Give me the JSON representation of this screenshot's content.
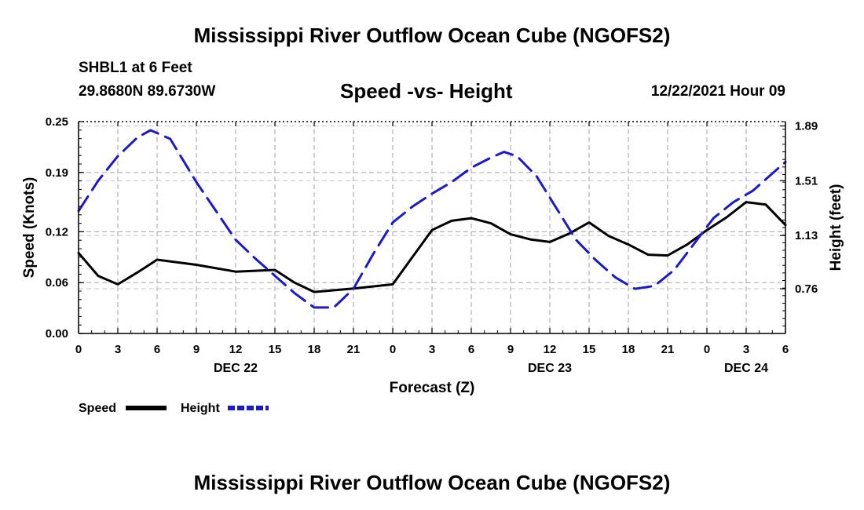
{
  "header": {
    "title": "Mississippi River Outflow Ocean Cube (NGOFS2)",
    "station": "SHBL1 at 6 Feet",
    "coords": "29.8680N  89.6730W",
    "subtitle": "Speed -vs- Height",
    "datetime": "12/22/2021 Hour 09"
  },
  "footer": {
    "title": "Mississippi River Outflow Ocean Cube (NGOFS2)"
  },
  "chart_data": {
    "type": "line",
    "title": "Speed -vs- Height",
    "xlabel": "Forecast (Z)",
    "ylabel": "Speed (Knots)",
    "y2label": "Height (feet)",
    "xlim": [
      0,
      54
    ],
    "ylim": [
      0,
      0.25
    ],
    "y2lim": [
      0.45,
      1.92
    ],
    "grid": true,
    "x_ticks": [
      0,
      3,
      6,
      9,
      12,
      15,
      18,
      21,
      24,
      27,
      30,
      33,
      36,
      39,
      42,
      45,
      48,
      51,
      54
    ],
    "x_tick_labels": [
      "0",
      "3",
      "6",
      "9",
      "12",
      "15",
      "18",
      "21",
      "0",
      "3",
      "6",
      "9",
      "12",
      "15",
      "18",
      "21",
      "0",
      "3",
      "6"
    ],
    "date_labels": [
      {
        "x": 12,
        "label": "DEC 22"
      },
      {
        "x": 36,
        "label": "DEC 23"
      },
      {
        "x": 51,
        "label": "DEC 24"
      }
    ],
    "y_ticks": [
      0.0,
      0.06,
      0.12,
      0.19,
      0.25
    ],
    "y_tick_labels": [
      "0.00",
      "0.06",
      "0.12",
      "0.19",
      "0.25"
    ],
    "y2_ticks": [
      0.76,
      1.13,
      1.51,
      1.89
    ],
    "y2_tick_labels": [
      "0.76",
      "1.13",
      "1.51",
      "1.89"
    ],
    "series": [
      {
        "name": "Speed",
        "axis": "left",
        "color": "#000000",
        "dash": "solid",
        "x": [
          0,
          1.5,
          3,
          4.5,
          6,
          9,
          12,
          13.5,
          15,
          16.5,
          18,
          21,
          24,
          25.5,
          27,
          28.5,
          30,
          31.5,
          33,
          34.5,
          36,
          37.5,
          39,
          40.5,
          42,
          43.5,
          45,
          46.5,
          48,
          49.5,
          51,
          52.5,
          54
        ],
        "values": [
          0.095,
          0.068,
          0.058,
          0.072,
          0.087,
          0.081,
          0.073,
          0.074,
          0.075,
          0.06,
          0.049,
          0.053,
          0.058,
          0.09,
          0.122,
          0.133,
          0.136,
          0.13,
          0.117,
          0.111,
          0.108,
          0.118,
          0.131,
          0.115,
          0.105,
          0.093,
          0.092,
          0.105,
          0.122,
          0.137,
          0.155,
          0.152,
          0.128
        ]
      },
      {
        "name": "Height",
        "axis": "right",
        "color": "#1a1acc",
        "dash": "dashed",
        "x": [
          0,
          1.5,
          3,
          4.5,
          5.5,
          7,
          9,
          10.5,
          12,
          13.5,
          15,
          16.5,
          18,
          19.5,
          21,
          22.5,
          24,
          25.5,
          27,
          28.5,
          30,
          31.5,
          32.5,
          33.5,
          35,
          36.5,
          38,
          39.5,
          41,
          42.5,
          44,
          45.5,
          47,
          48.5,
          50,
          51.5,
          53,
          54
        ],
        "values": [
          1.3,
          1.51,
          1.68,
          1.81,
          1.86,
          1.8,
          1.5,
          1.3,
          1.1,
          0.97,
          0.85,
          0.73,
          0.63,
          0.63,
          0.76,
          1.0,
          1.22,
          1.33,
          1.42,
          1.5,
          1.6,
          1.67,
          1.71,
          1.68,
          1.54,
          1.32,
          1.1,
          0.96,
          0.84,
          0.76,
          0.78,
          0.89,
          1.07,
          1.25,
          1.36,
          1.44,
          1.56,
          1.64
        ]
      }
    ],
    "legend": [
      {
        "label": "Speed",
        "series": "Speed"
      },
      {
        "label": "Height",
        "series": "Height"
      }
    ],
    "legend_position": "bottom-left"
  }
}
